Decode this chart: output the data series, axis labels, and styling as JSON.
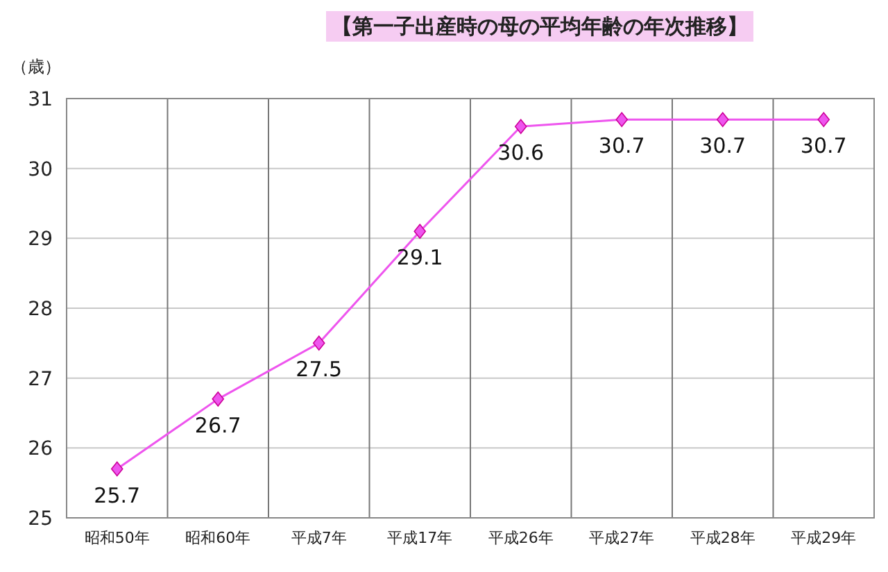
{
  "chart_data": {
    "type": "line",
    "title": "【第一子出産時の母の平均年齢の年次推移】",
    "ylabel": "（歳）",
    "categories": [
      "昭和50年",
      "昭和60年",
      "平成7年",
      "平成17年",
      "平成26年",
      "平成27年",
      "平成28年",
      "平成29年"
    ],
    "series": [
      {
        "color": "#ee55ee",
        "values": [
          25.7,
          26.7,
          27.5,
          29.1,
          30.6,
          30.7,
          30.7,
          30.7
        ]
      }
    ],
    "ylim": [
      25,
      31
    ],
    "yticks": [
      25,
      26,
      27,
      28,
      29,
      30,
      31
    ],
    "grid": true,
    "marker": "diamond",
    "line_style": "solid",
    "data_labels": true
  }
}
